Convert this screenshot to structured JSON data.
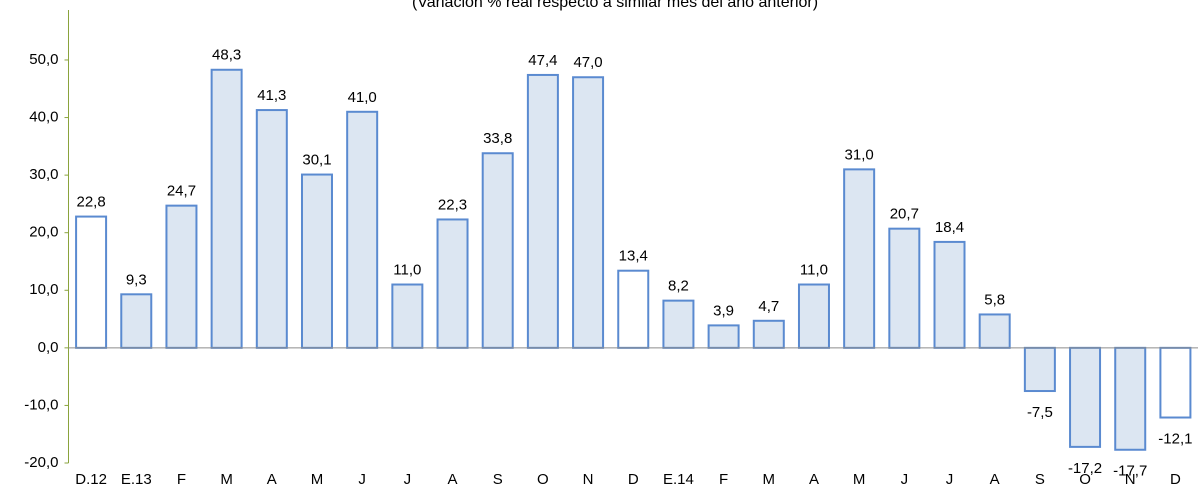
{
  "chart_data": {
    "type": "bar",
    "subtitle": "(Variación % real respecto a similar mes del año anterior)",
    "categories": [
      "D.12",
      "E.13",
      "F",
      "M",
      "A",
      "M",
      "J",
      "J",
      "A",
      "S",
      "O",
      "N",
      "D",
      "E.14",
      "F",
      "M",
      "A",
      "M",
      "J",
      "J",
      "A",
      "S",
      "O",
      "N",
      "D"
    ],
    "values": [
      22.8,
      9.3,
      24.7,
      48.3,
      41.3,
      30.1,
      41.0,
      11.0,
      22.3,
      33.8,
      47.4,
      47.0,
      13.4,
      8.2,
      3.9,
      4.7,
      11.0,
      31.0,
      20.7,
      18.4,
      5.8,
      -7.5,
      -17.2,
      -17.7,
      -12.1
    ],
    "value_labels": [
      "22,8",
      "9,3",
      "24,7",
      "48,3",
      "41,3",
      "30,1",
      "41,0",
      "11,0",
      "22,3",
      "33,8",
      "47,4",
      "47,0",
      "13,4",
      "8,2",
      "3,9",
      "4,7",
      "11,0",
      "31,0",
      "20,7",
      "18,4",
      "5,8",
      "-7,5",
      "-17,2",
      "-17,7",
      "-12,1"
    ],
    "colors": [
      "#ffffff",
      "#dce6f2",
      "#dce6f2",
      "#dce6f2",
      "#dce6f2",
      "#dce6f2",
      "#dce6f2",
      "#dce6f2",
      "#dce6f2",
      "#dce6f2",
      "#dce6f2",
      "#dce6f2",
      "#ffffff",
      "#dce6f2",
      "#dce6f2",
      "#dce6f2",
      "#dce6f2",
      "#dce6f2",
      "#dce6f2",
      "#dce6f2",
      "#dce6f2",
      "#dce6f2",
      "#dce6f2",
      "#dce6f2",
      "#ffffff"
    ],
    "edge_color": "#5a8ad0",
    "ylim": [
      -20,
      60
    ],
    "yticks": [
      {
        "value": -20,
        "label": "-20,0"
      },
      {
        "value": -10,
        "label": "-10,0"
      },
      {
        "value": 0,
        "label": "0,0"
      },
      {
        "value": 10,
        "label": "10,0"
      },
      {
        "value": 20,
        "label": "20,0"
      },
      {
        "value": 30,
        "label": "30,0"
      },
      {
        "value": 40,
        "label": "40,0"
      },
      {
        "value": 50,
        "label": "50,0"
      }
    ]
  }
}
